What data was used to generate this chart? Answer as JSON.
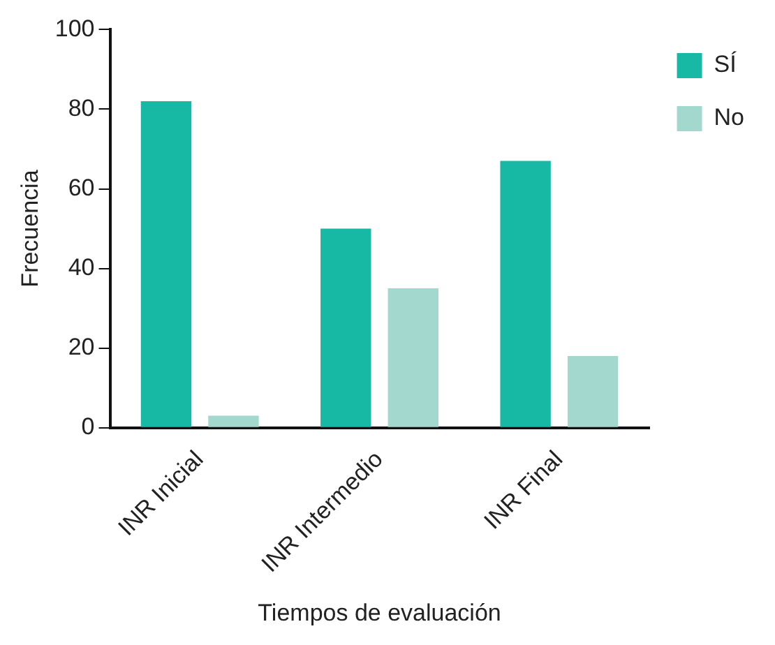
{
  "chart_data": {
    "type": "bar",
    "xlabel": "Tiempos de evaluación",
    "ylabel": "Frecuencia",
    "categories": [
      "INR Inicial",
      "INR Intermedio",
      "INR Final"
    ],
    "series": [
      {
        "name": "SÍ",
        "color": "#17b9a5",
        "values": [
          82,
          50,
          67
        ]
      },
      {
        "name": "No",
        "color": "#a2d8cd",
        "values": [
          3,
          35,
          18
        ]
      }
    ],
    "ylim": [
      0,
      100
    ],
    "yticks": [
      0,
      20,
      40,
      60,
      80,
      100
    ],
    "grid": false,
    "legend": "top right"
  }
}
